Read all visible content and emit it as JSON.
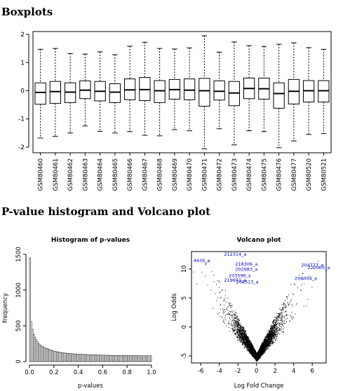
{
  "headings": {
    "boxplots": "Boxplots",
    "second": "P-value histogram and Volcano plot"
  },
  "chart_data": [
    {
      "type": "boxplot",
      "title": "",
      "xlabel": "",
      "ylabel": "",
      "ylim": [
        -2.2,
        2.1
      ],
      "yticks": [
        -2,
        -1,
        0,
        1,
        2
      ],
      "grid": false,
      "categories": [
        "GSM80460",
        "GSM80461",
        "GSM80462",
        "GSM80463",
        "GSM80464",
        "GSM80465",
        "GSM80466",
        "GSM80467",
        "GSM80468",
        "GSM80469",
        "GSM80470",
        "GSM80471",
        "GSM80472",
        "GSM80473",
        "GSM80474",
        "GSM80475",
        "GSM80476",
        "GSM80477",
        "GSM80520",
        "GSM80521"
      ],
      "boxes": [
        {
          "whisker_low": -1.68,
          "q1": -0.48,
          "median": -0.06,
          "q3": 0.28,
          "whisker_high": 1.47
        },
        {
          "whisker_low": -1.62,
          "q1": -0.45,
          "median": -0.03,
          "q3": 0.33,
          "whisker_high": 1.5
        },
        {
          "whisker_low": -1.5,
          "q1": -0.42,
          "median": -0.05,
          "q3": 0.28,
          "whisker_high": 1.32
        },
        {
          "whisker_low": -1.25,
          "q1": -0.28,
          "median": 0.02,
          "q3": 0.35,
          "whisker_high": 1.3
        },
        {
          "whisker_low": -1.44,
          "q1": -0.36,
          "median": -0.02,
          "q3": 0.33,
          "whisker_high": 1.38
        },
        {
          "whisker_low": -1.5,
          "q1": -0.42,
          "median": -0.05,
          "q3": 0.25,
          "whisker_high": 1.28
        },
        {
          "whisker_low": -1.45,
          "q1": -0.32,
          "median": 0.03,
          "q3": 0.42,
          "whisker_high": 1.58
        },
        {
          "whisker_low": -1.58,
          "q1": -0.35,
          "median": 0.04,
          "q3": 0.47,
          "whisker_high": 1.72
        },
        {
          "whisker_low": -1.6,
          "q1": -0.42,
          "median": 0.0,
          "q3": 0.36,
          "whisker_high": 1.5
        },
        {
          "whisker_low": -1.38,
          "q1": -0.3,
          "median": 0.04,
          "q3": 0.4,
          "whisker_high": 1.48
        },
        {
          "whisker_low": -1.42,
          "q1": -0.32,
          "median": 0.02,
          "q3": 0.42,
          "whisker_high": 1.52
        },
        {
          "whisker_low": -2.06,
          "q1": -0.55,
          "median": 0.0,
          "q3": 0.44,
          "whisker_high": 1.95
        },
        {
          "whisker_low": -1.35,
          "q1": -0.33,
          "median": -0.02,
          "q3": 0.35,
          "whisker_high": 1.37
        },
        {
          "whisker_low": -1.92,
          "q1": -0.53,
          "median": -0.08,
          "q3": 0.33,
          "whisker_high": 1.73
        },
        {
          "whisker_low": -1.42,
          "q1": -0.28,
          "median": 0.08,
          "q3": 0.45,
          "whisker_high": 1.6
        },
        {
          "whisker_low": -1.45,
          "q1": -0.3,
          "median": 0.07,
          "q3": 0.45,
          "whisker_high": 1.57
        },
        {
          "whisker_low": -2.02,
          "q1": -0.62,
          "median": -0.1,
          "q3": 0.28,
          "whisker_high": 1.65
        },
        {
          "whisker_low": -1.78,
          "q1": -0.47,
          "median": -0.02,
          "q3": 0.4,
          "whisker_high": 1.7
        },
        {
          "whisker_low": -1.55,
          "q1": -0.4,
          "median": 0.0,
          "q3": 0.36,
          "whisker_high": 1.53
        },
        {
          "whisker_low": -1.52,
          "q1": -0.4,
          "median": 0.0,
          "q3": 0.36,
          "whisker_high": 1.47
        }
      ]
    },
    {
      "type": "bar",
      "title": "Histogram of p-values",
      "xlabel": "p-values",
      "ylabel": "frequency",
      "xlim": [
        0,
        1
      ],
      "ylim": [
        0,
        1500
      ],
      "xticks": [
        "0.0",
        "0.2",
        "0.4",
        "0.6",
        "0.8",
        "1.0"
      ],
      "yticks": [
        "0",
        "500",
        "1000",
        "1500"
      ],
      "bin_width": 0.01,
      "values": [
        1450,
        560,
        450,
        380,
        340,
        310,
        280,
        255,
        235,
        225,
        210,
        205,
        195,
        185,
        180,
        175,
        168,
        160,
        155,
        150,
        145,
        140,
        138,
        135,
        132,
        128,
        125,
        122,
        120,
        118,
        116,
        115,
        113,
        112,
        110,
        108,
        107,
        106,
        105,
        104,
        103,
        102,
        101,
        100,
        100,
        99,
        98,
        97,
        96,
        96,
        95,
        95,
        94,
        93,
        93,
        92,
        92,
        91,
        91,
        90,
        90,
        89,
        89,
        88,
        88,
        88,
        87,
        87,
        87,
        86,
        86,
        86,
        85,
        85,
        85,
        85,
        84,
        84,
        84,
        84,
        83,
        83,
        83,
        83,
        83,
        82,
        82,
        82,
        82,
        82,
        82,
        81,
        81,
        81,
        81,
        81,
        81,
        80,
        80,
        80
      ]
    },
    {
      "type": "scatter",
      "title": "Volcano plot",
      "xlabel": "Log Fold Change",
      "ylabel": "Log Odds",
      "xlim": [
        -7,
        7.5
      ],
      "ylim": [
        -6.2,
        13
      ],
      "xticks": [
        -6,
        -4,
        -2,
        0,
        2,
        4,
        6
      ],
      "yticks": [
        -5,
        0,
        5,
        10
      ],
      "annotations": [
        {
          "text": "212314_a",
          "x": -3.5,
          "y": 12.3
        },
        {
          "text": "4439_a",
          "x": -6.8,
          "y": 11.2
        },
        {
          "text": "218306_a",
          "x": -2.3,
          "y": 10.6
        },
        {
          "text": "202983_a",
          "x": -2.3,
          "y": 9.7
        },
        {
          "text": "203596_s",
          "x": -3.0,
          "y": 8.6
        },
        {
          "text": "219691_a",
          "x": -3.5,
          "y": 7.8
        },
        {
          "text": "206513_a",
          "x": -2.2,
          "y": 7.5
        },
        {
          "text": "204777_a",
          "x": 4.8,
          "y": 10.4
        },
        {
          "text": "220005_a",
          "x": 5.5,
          "y": 10.0
        },
        {
          "text": "206004_a",
          "x": 4.1,
          "y": 8.1
        }
      ]
    }
  ]
}
